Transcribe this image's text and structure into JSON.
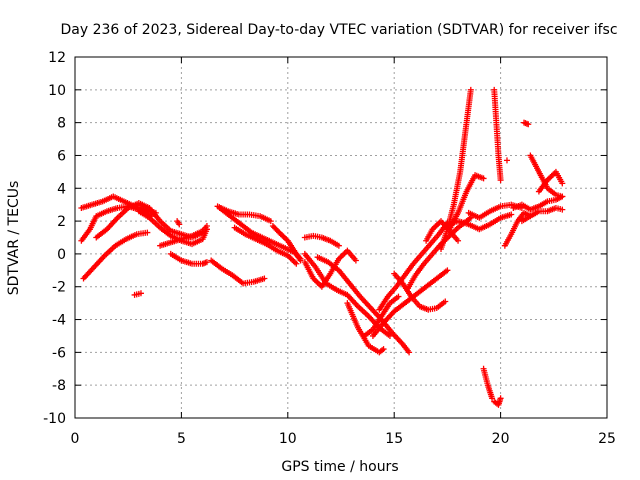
{
  "chart_data": {
    "type": "scatter",
    "title": "Day 236 of 2023, Sidereal Day-to-day VTEC variation (SDTVAR) for receiver ifsc",
    "xlabel": "GPS time / hours",
    "ylabel": "SDTVAR / TECUs",
    "xlim": [
      0,
      25
    ],
    "ylim": [
      -10,
      12
    ],
    "xticks": [
      0,
      5,
      10,
      15,
      20,
      25
    ],
    "yticks": [
      -10,
      -8,
      -6,
      -4,
      -2,
      0,
      2,
      4,
      6,
      8,
      10,
      12
    ],
    "grid": true,
    "marker": "+",
    "series_color": "#ff0000",
    "tracks": [
      {
        "name": "track-a",
        "x": [
          0.3,
          0.8,
          1.3,
          1.8,
          2.3,
          2.8,
          3.3,
          3.8
        ],
        "y": [
          2.8,
          3.0,
          3.2,
          3.5,
          3.2,
          2.9,
          2.7,
          2.5
        ]
      },
      {
        "name": "track-b",
        "x": [
          0.3,
          0.7,
          1.0,
          1.5,
          2.0,
          2.5,
          3.0,
          3.6
        ],
        "y": [
          0.8,
          1.5,
          2.3,
          2.6,
          2.8,
          2.9,
          2.7,
          2.3
        ]
      },
      {
        "name": "track-c",
        "x": [
          0.4,
          0.9,
          1.4,
          1.9,
          2.4,
          2.9,
          3.4
        ],
        "y": [
          -1.5,
          -0.8,
          -0.1,
          0.5,
          0.9,
          1.2,
          1.3
        ]
      },
      {
        "name": "track-d",
        "x": [
          1.0,
          1.5,
          2.0,
          2.5,
          3.0,
          3.5,
          4.0,
          4.5,
          5.0,
          5.5,
          6.0
        ],
        "y": [
          1.0,
          1.5,
          2.2,
          2.8,
          3.1,
          2.8,
          2.0,
          1.4,
          1.2,
          1.0,
          1.3
        ]
      },
      {
        "name": "track-e",
        "x": [
          3.0,
          3.5,
          4.0,
          4.5,
          5.0,
          5.5,
          6.0,
          6.2
        ],
        "y": [
          2.6,
          2.2,
          1.6,
          1.1,
          0.8,
          0.6,
          0.9,
          1.5
        ]
      },
      {
        "name": "track-f",
        "x": [
          4.0,
          4.5,
          5.0,
          5.5,
          6.0,
          6.2
        ],
        "y": [
          0.5,
          0.7,
          0.9,
          1.1,
          1.4,
          1.7
        ]
      },
      {
        "name": "track-g",
        "x": [
          4.5,
          5.0,
          5.5,
          6.0,
          6.2
        ],
        "y": [
          0.0,
          -0.4,
          -0.6,
          -0.6,
          -0.5
        ]
      },
      {
        "name": "track-h",
        "x": [
          2.8,
          3.1
        ],
        "y": [
          -2.5,
          -2.4
        ]
      },
      {
        "name": "track-i",
        "x": [
          4.8,
          4.9
        ],
        "y": [
          2.0,
          1.8
        ]
      },
      {
        "name": "track-j",
        "x": [
          6.4,
          6.9,
          7.4,
          7.9,
          8.4,
          8.9
        ],
        "y": [
          -0.4,
          -0.9,
          -1.3,
          -1.8,
          -1.7,
          -1.5
        ]
      },
      {
        "name": "track-k",
        "x": [
          6.7,
          7.2,
          7.7,
          8.2,
          8.7,
          9.2
        ],
        "y": [
          2.9,
          2.6,
          2.4,
          2.4,
          2.3,
          2.0
        ]
      },
      {
        "name": "track-l",
        "x": [
          6.8,
          7.3,
          7.8,
          8.3,
          8.8,
          9.3,
          9.8,
          10.3,
          10.6
        ],
        "y": [
          2.8,
          2.3,
          1.8,
          1.3,
          1.0,
          0.7,
          0.4,
          0.1,
          -0.3
        ]
      },
      {
        "name": "track-m",
        "x": [
          7.5,
          8.0,
          8.5,
          9.0,
          9.5,
          10.0,
          10.4
        ],
        "y": [
          1.6,
          1.2,
          0.9,
          0.6,
          0.2,
          -0.1,
          -0.6
        ]
      },
      {
        "name": "track-n",
        "x": [
          9.3,
          9.6,
          10.0,
          10.3,
          10.6
        ],
        "y": [
          1.7,
          1.3,
          0.8,
          0.2,
          -0.4
        ]
      },
      {
        "name": "track-o",
        "x": [
          10.8,
          11.2,
          11.6,
          12.0,
          12.4
        ],
        "y": [
          1.0,
          1.1,
          1.0,
          0.8,
          0.5
        ]
      },
      {
        "name": "track-p",
        "x": [
          10.8,
          11.2,
          11.6,
          12.0,
          12.4,
          12.8,
          13.2
        ],
        "y": [
          -0.5,
          -1.5,
          -2.0,
          -1.2,
          -0.3,
          0.2,
          -0.4
        ]
      },
      {
        "name": "track-q",
        "x": [
          10.8,
          11.3,
          11.8,
          12.3,
          12.8,
          13.3,
          13.8,
          14.3,
          14.8
        ],
        "y": [
          0.0,
          -0.8,
          -1.8,
          -2.2,
          -2.5,
          -3.2,
          -3.8,
          -4.5,
          -5.0
        ]
      },
      {
        "name": "track-r",
        "x": [
          11.4,
          11.9,
          12.4,
          12.9,
          13.4,
          13.9,
          14.4,
          14.9,
          15.4,
          15.7
        ],
        "y": [
          -0.2,
          -0.5,
          -1.0,
          -1.8,
          -2.6,
          -3.3,
          -4.0,
          -4.8,
          -5.5,
          -6.0
        ]
      },
      {
        "name": "track-s",
        "x": [
          12.8,
          13.3,
          13.8,
          14.3,
          14.5
        ],
        "y": [
          -3.0,
          -4.5,
          -5.6,
          -6.0,
          -5.8
        ]
      },
      {
        "name": "track-t",
        "x": [
          13.6,
          14.0,
          14.4,
          14.8,
          15.2
        ],
        "y": [
          -5.0,
          -4.6,
          -3.8,
          -3.0,
          -2.6
        ]
      },
      {
        "name": "track-u",
        "x": [
          14.0,
          14.5,
          15.0,
          15.5,
          16.0,
          16.5,
          17.0,
          17.5
        ],
        "y": [
          -5.0,
          -4.2,
          -3.5,
          -3.0,
          -2.5,
          -2.0,
          -1.5,
          -1.0
        ]
      },
      {
        "name": "track-v",
        "x": [
          14.3,
          14.7,
          15.1,
          15.5,
          15.9,
          16.3,
          16.7,
          17.1,
          17.5
        ],
        "y": [
          -3.4,
          -2.6,
          -2.0,
          -1.3,
          -0.6,
          0.0,
          0.6,
          1.2,
          1.9
        ]
      },
      {
        "name": "track-w",
        "x": [
          15.0,
          15.4,
          15.8,
          16.2,
          16.6,
          17.0,
          17.4
        ],
        "y": [
          -1.2,
          -1.8,
          -2.6,
          -3.2,
          -3.4,
          -3.3,
          -2.9
        ]
      },
      {
        "name": "track-x",
        "x": [
          15.6,
          16.0,
          16.4,
          16.8,
          17.2,
          17.6,
          18.0,
          18.4,
          18.6
        ],
        "y": [
          -2.2,
          -1.3,
          -0.6,
          0.0,
          0.6,
          1.1,
          1.6,
          2.0,
          2.2
        ]
      },
      {
        "name": "track-y",
        "x": [
          16.5,
          16.8,
          17.2,
          17.6,
          18.0
        ],
        "y": [
          0.8,
          1.5,
          2.0,
          1.4,
          0.8
        ]
      },
      {
        "name": "track-z",
        "x": [
          17.2,
          17.5,
          17.8,
          18.1,
          18.3,
          18.5,
          18.6
        ],
        "y": [
          0.3,
          1.5,
          3.0,
          5.0,
          7.0,
          9.0,
          10.0
        ]
      },
      {
        "name": "track-aa",
        "x": [
          17.6,
          18.0,
          18.4,
          18.8,
          19.2
        ],
        "y": [
          1.5,
          2.5,
          3.8,
          4.8,
          4.6
        ]
      },
      {
        "name": "track-ab",
        "x": [
          17.5,
          18.0,
          18.5,
          19.0,
          19.5,
          20.0,
          20.5
        ],
        "y": [
          1.8,
          2.0,
          1.8,
          1.5,
          1.8,
          2.2,
          2.4
        ]
      },
      {
        "name": "track-ac",
        "x": [
          18.5,
          19.0,
          19.5,
          20.0,
          20.5,
          21.0
        ],
        "y": [
          2.5,
          2.2,
          2.6,
          2.9,
          3.0,
          2.8
        ]
      },
      {
        "name": "track-ad",
        "x": [
          19.7,
          19.8,
          19.9,
          20.0
        ],
        "y": [
          10.0,
          8.0,
          6.0,
          4.5
        ]
      },
      {
        "name": "track-ae",
        "x": [
          20.3
        ],
        "y": [
          5.7
        ]
      },
      {
        "name": "track-af",
        "x": [
          21.1,
          21.3
        ],
        "y": [
          8.0,
          7.9
        ]
      },
      {
        "name": "track-ag",
        "x": [
          19.2,
          19.4,
          19.6
        ],
        "y": [
          -7.0,
          -8.0,
          -8.8
        ]
      },
      {
        "name": "track-ah",
        "x": [
          19.7,
          19.9,
          20.0
        ],
        "y": [
          -9.0,
          -9.2,
          -8.8
        ]
      },
      {
        "name": "track-ai",
        "x": [
          20.2,
          20.5,
          20.8,
          21.1,
          21.4
        ],
        "y": [
          0.5,
          1.2,
          2.0,
          2.5,
          2.3
        ]
      },
      {
        "name": "track-aj",
        "x": [
          20.6,
          21.0,
          21.4,
          21.8,
          22.2,
          22.6,
          22.9
        ],
        "y": [
          2.8,
          3.0,
          2.7,
          2.9,
          3.2,
          3.3,
          3.5
        ]
      },
      {
        "name": "track-ak",
        "x": [
          21.0,
          21.4,
          21.8,
          22.2,
          22.6,
          22.9
        ],
        "y": [
          2.0,
          2.3,
          2.6,
          2.6,
          2.8,
          2.7
        ]
      },
      {
        "name": "track-al",
        "x": [
          21.4,
          21.8,
          22.2,
          22.6,
          22.9
        ],
        "y": [
          6.0,
          5.0,
          4.0,
          3.6,
          3.5
        ]
      },
      {
        "name": "track-am",
        "x": [
          21.8,
          22.2,
          22.6,
          22.9
        ],
        "y": [
          3.8,
          4.5,
          5.0,
          4.3
        ]
      }
    ]
  }
}
